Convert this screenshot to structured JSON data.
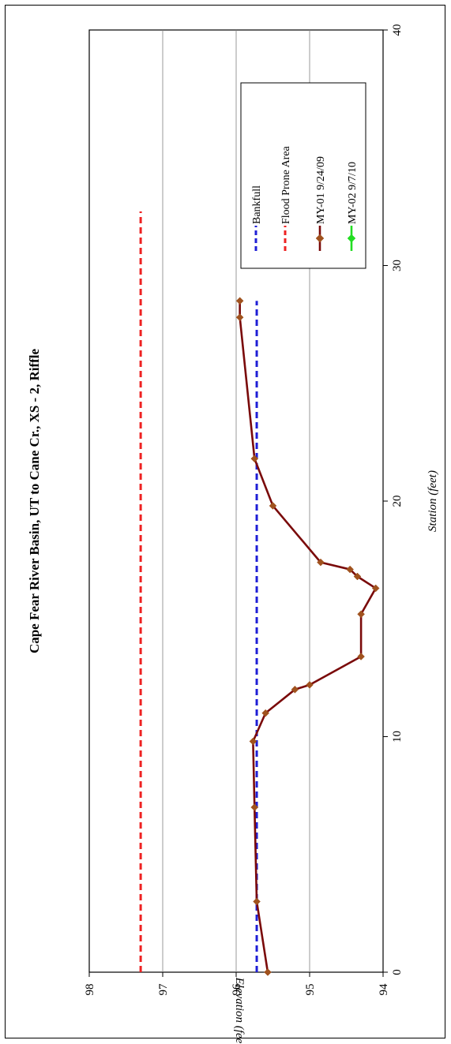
{
  "chart_data": {
    "type": "line",
    "title": "Cape Fear River Basin, UT to Cane Cr., XS - 2, Riffle",
    "xlabel": "Station (feet)",
    "ylabel": "Elevation (feet)",
    "xlim": [
      0,
      40
    ],
    "ylim": [
      94,
      98
    ],
    "x_ticks": [
      "0",
      "10",
      "20",
      "30",
      "40"
    ],
    "y_ticks": [
      "94",
      "95",
      "96",
      "97",
      "98"
    ],
    "grid": "horizontal major gridlines",
    "legend_position": "top-right",
    "series": [
      {
        "name": "Bankfull",
        "style": "dashed",
        "color": "#1f1fd6",
        "x": [
          0,
          28.5
        ],
        "y": [
          95.72,
          95.72
        ]
      },
      {
        "name": "Flood Prone Area",
        "style": "dashed",
        "color": "#ee2222",
        "x": [
          0,
          32.3
        ],
        "y": [
          97.3,
          97.3
        ]
      },
      {
        "name": "MY-01 9/24/09",
        "style": "solid-diamond",
        "color": "#7a0a0a",
        "marker_color": "#a0521e",
        "x": [
          0,
          3.0,
          7.0,
          9.8,
          11.0,
          12.0,
          12.2,
          13.4,
          15.2,
          16.3,
          16.8,
          17.1,
          17.4,
          19.8,
          21.8,
          27.8,
          28.5
        ],
        "y": [
          95.57,
          95.72,
          95.75,
          95.77,
          95.6,
          95.2,
          95.0,
          94.3,
          94.3,
          94.1,
          94.35,
          94.45,
          94.85,
          95.5,
          95.75,
          95.95,
          95.95
        ]
      },
      {
        "name": "MY-02 9/7/10",
        "style": "solid-diamond",
        "color": "#22dd22",
        "marker_color": "#22dd22",
        "x": [],
        "y": []
      }
    ]
  }
}
